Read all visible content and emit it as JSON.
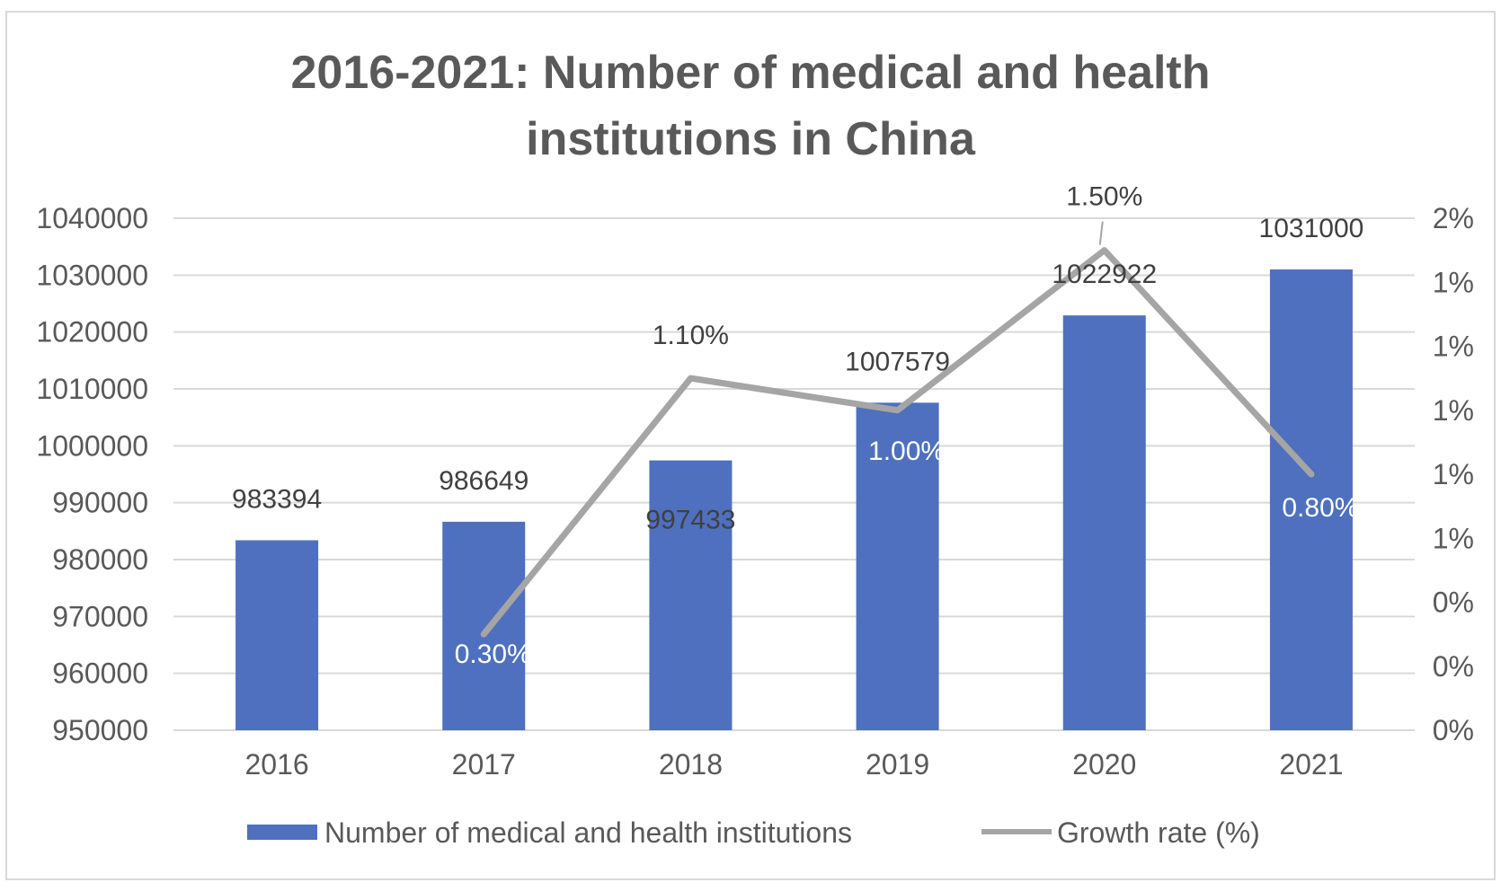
{
  "chart_data": {
    "type": "bar",
    "title_line1": "2016-2021: Number of medical and health",
    "title_line2": "institutions in China",
    "categories": [
      "2016",
      "2017",
      "2018",
      "2019",
      "2020",
      "2021"
    ],
    "series": [
      {
        "name": "Number of medical and health institutions",
        "type": "bar",
        "axis": "left",
        "values": [
          983394,
          986649,
          997433,
          1007579,
          1022922,
          1031000
        ],
        "labels": [
          "983394",
          "986649",
          "997433",
          "1007579",
          "1022922",
          "1031000"
        ]
      },
      {
        "name": "Growth rate (%)",
        "type": "line",
        "axis": "right",
        "values": [
          null,
          0.3,
          1.1,
          1.0,
          1.5,
          0.8
        ],
        "labels": [
          "",
          "0.30%",
          "1.10%",
          "1.00%",
          "1.50%",
          "0.80%"
        ]
      }
    ],
    "y_left": {
      "min": 950000,
      "max": 1040000,
      "ticks": [
        "1040000",
        "1030000",
        "1020000",
        "1010000",
        "1000000",
        "990000",
        "980000",
        "970000",
        "960000",
        "950000"
      ]
    },
    "y_right": {
      "min": 0,
      "max": 1.6,
      "ticks": [
        "2%",
        "1%",
        "1%",
        "1%",
        "1%",
        "1%",
        "0%",
        "0%",
        "0%"
      ]
    },
    "grid": true,
    "legend": "bottom",
    "colors": {
      "bar": "#4e70be",
      "line": "#a5a5a5",
      "grid": "#d9d9d9",
      "text": "#595959"
    }
  }
}
